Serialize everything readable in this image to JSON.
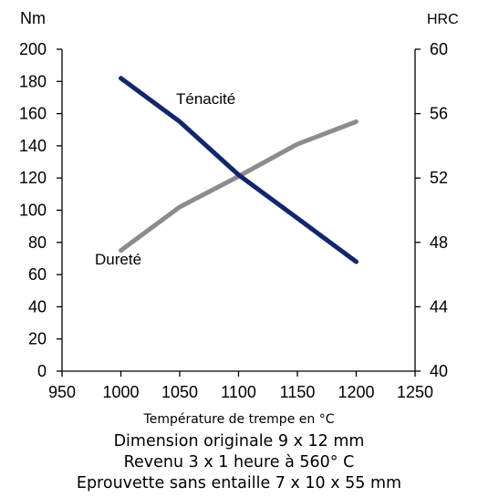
{
  "chart_data": {
    "type": "line",
    "xlabel": "Température de trempe en °C",
    "ylabel_left": "Nm",
    "ylabel_right": "HRC",
    "x_ticks": [
      950,
      1000,
      1050,
      1100,
      1150,
      1200,
      1250
    ],
    "y_left_ticks": [
      0,
      20,
      40,
      60,
      80,
      100,
      120,
      140,
      160,
      180,
      200
    ],
    "y_right_ticks": [
      40,
      44,
      48,
      52,
      56,
      60
    ],
    "xlim": [
      950,
      1250
    ],
    "ylim_left": [
      0,
      200
    ],
    "ylim_right": [
      40,
      60
    ],
    "grid": false,
    "legend": "none",
    "series": [
      {
        "name": "Ténacité",
        "axis": "left",
        "color": "#12266b",
        "x": [
          1000,
          1050,
          1100,
          1150,
          1200
        ],
        "y": [
          182,
          155,
          122,
          95,
          68
        ]
      },
      {
        "name": "Dureté",
        "axis": "right",
        "color": "#8c8c8c",
        "x": [
          1000,
          1050,
          1100,
          1150,
          1200
        ],
        "y": [
          47.5,
          50.2,
          52.1,
          54.1,
          55.5
        ]
      }
    ]
  },
  "notes": {
    "line1": "Dimension originale  9 x 12 mm",
    "line2": "Revenu 3 x 1 heure à 560° C",
    "line3": "Eprouvette sans entaille 7 x 10 x 55 mm"
  }
}
